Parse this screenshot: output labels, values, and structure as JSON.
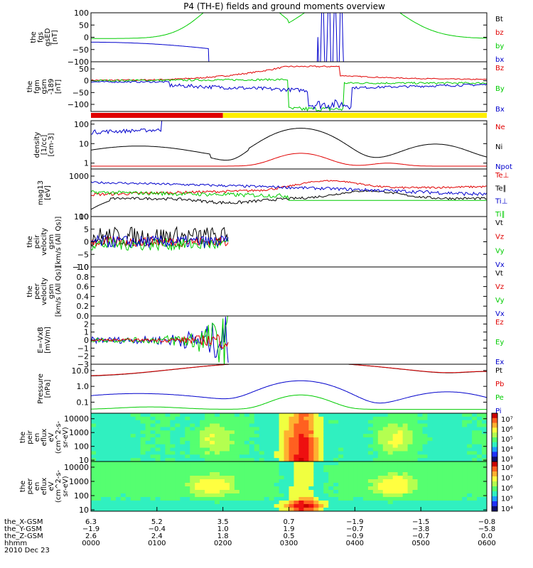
{
  "title": "P4 (TH-E) fields and ground moments overview",
  "colors": {
    "black": "#000000",
    "red": "#e00000",
    "green": "#00cc00",
    "blue": "#0000cc",
    "yellow": "#ffee00"
  },
  "chart_data": [
    {
      "id": "fgs",
      "type": "line",
      "ylabel_lines": [
        "the",
        "fgs",
        "gsED",
        "[nT]"
      ],
      "ylim": [
        -100,
        100
      ],
      "ticks": [
        "100",
        "50",
        "0",
        "−50",
        "−100"
      ],
      "tick_values": [
        100,
        50,
        0,
        -50,
        -100
      ],
      "legend": [
        {
          "label": "Bt",
          "color": "#000000"
        },
        {
          "label": "bz",
          "color": "#e00000"
        },
        {
          "label": "by",
          "color": "#00cc00"
        },
        {
          "label": "bx",
          "color": "#0000cc"
        }
      ]
    },
    {
      "id": "fgm",
      "type": "line",
      "ylabel_lines": [
        "the",
        "fgm",
        "gsm",
        "-189",
        "[nT]"
      ],
      "ylim": [
        -130,
        80
      ],
      "ticks": [
        "50",
        "0",
        "−50",
        "−100"
      ],
      "tick_values": [
        50,
        0,
        -50,
        -100
      ],
      "legend": [
        {
          "label": "Bz",
          "color": "#e00000"
        },
        {
          "label": "By",
          "color": "#00cc00"
        },
        {
          "label": "Bx",
          "color": "#0000cc"
        }
      ]
    },
    {
      "id": "density",
      "type": "line",
      "scale": "log",
      "ylabel_lines": [
        "density",
        "[1/cc]",
        "[cm-3]"
      ],
      "ylim": [
        0.5,
        150
      ],
      "ticks": [
        "100",
        "10",
        "1"
      ],
      "tick_values": [
        100,
        10,
        1
      ],
      "legend": [
        {
          "label": "Ne",
          "color": "#e00000"
        },
        {
          "label": "Ni",
          "color": "#000000"
        },
        {
          "label": "Npot",
          "color": "#0000cc"
        }
      ]
    },
    {
      "id": "temp",
      "type": "line",
      "scale": "log",
      "ylabel_lines": [
        "mag13",
        "[eV]"
      ],
      "ylim": [
        100,
        1500
      ],
      "ticks": [
        "1000",
        "100"
      ],
      "tick_values": [
        1000,
        100
      ],
      "legend": [
        {
          "label": "Te⊥",
          "color": "#e00000"
        },
        {
          "label": "Te∥",
          "color": "#000000"
        },
        {
          "label": "Ti⊥",
          "color": "#0000cc"
        },
        {
          "label": "Ti∥",
          "color": "#00cc00"
        }
      ]
    },
    {
      "id": "peir_v",
      "type": "line",
      "ylabel_lines": [
        "the",
        "peir",
        "velocity",
        "gsm",
        "[km/s (All Qs)]"
      ],
      "ylim": [
        -10,
        10
      ],
      "ticks": [
        "10",
        "5",
        "0",
        "−5",
        "−10"
      ],
      "tick_values": [
        10,
        5,
        0,
        -5,
        -10
      ],
      "legend": [
        {
          "label": "Vt",
          "color": "#000000"
        },
        {
          "label": "Vz",
          "color": "#e00000"
        },
        {
          "label": "Vy",
          "color": "#00cc00"
        },
        {
          "label": "Vx",
          "color": "#0000cc"
        }
      ]
    },
    {
      "id": "peer_v",
      "type": "line",
      "ylabel_lines": [
        "the",
        "peer",
        "velocity",
        "gsm",
        "[km/s (All Qs)]"
      ],
      "ylim": [
        0,
        1
      ],
      "ticks": [
        "1.0",
        "0.8",
        "0.6",
        "0.4",
        "0.2",
        "0.0"
      ],
      "tick_values": [
        1,
        0.8,
        0.6,
        0.4,
        0.2,
        0
      ],
      "legend": [
        {
          "label": "Vt",
          "color": "#000000"
        },
        {
          "label": "Vz",
          "color": "#e00000"
        },
        {
          "label": "Vy",
          "color": "#00cc00"
        },
        {
          "label": "Vx",
          "color": "#0000cc"
        }
      ]
    },
    {
      "id": "efield",
      "type": "line",
      "ylabel_lines": [
        "E=-VxB",
        "[mV/m]"
      ],
      "ylim": [
        -3,
        3
      ],
      "ticks": [
        "2",
        "1",
        "0",
        "−1",
        "−2",
        "−3"
      ],
      "tick_values": [
        2,
        1,
        0,
        -1,
        -2,
        -3
      ],
      "legend": [
        {
          "label": "Ez",
          "color": "#e00000"
        },
        {
          "label": "Ey",
          "color": "#00cc00"
        },
        {
          "label": "Ex",
          "color": "#0000cc"
        }
      ]
    },
    {
      "id": "pressure",
      "type": "line",
      "scale": "log",
      "ylabel_lines": [
        "Pressure",
        "[nPa]"
      ],
      "ylim": [
        0.02,
        25
      ],
      "ticks": [
        "10.0",
        "1.0",
        "0.1"
      ],
      "tick_values": [
        10,
        1,
        0.1
      ],
      "legend": [
        {
          "label": "Pt",
          "color": "#000000"
        },
        {
          "label": "Pb",
          "color": "#e00000"
        },
        {
          "label": "Pe",
          "color": "#00cc00"
        },
        {
          "label": "Pi",
          "color": "#0000cc"
        }
      ]
    },
    {
      "id": "peir_flux",
      "type": "heatmap",
      "scale": "log",
      "ylabel_lines": [
        "the",
        "peir",
        "en",
        "eflux",
        "eV",
        "(cm^2-s-",
        "sr-eV)"
      ],
      "ylim": [
        8,
        25000
      ],
      "ticks": [
        "10000",
        "1000",
        "100",
        "10"
      ],
      "tick_values": [
        10000,
        1000,
        100,
        10
      ],
      "colorbar": {
        "labels": [
          "10⁷",
          "10⁶",
          "10⁵",
          "10⁴",
          "10³"
        ],
        "range": [
          3,
          7
        ]
      }
    },
    {
      "id": "peer_flux",
      "type": "heatmap",
      "scale": "log",
      "ylabel_lines": [
        "the",
        "peer",
        "en",
        "eflux",
        "eV",
        "(cm^2-s-",
        "sr-eV)"
      ],
      "ylim": [
        8,
        25000
      ],
      "ticks": [
        "10000",
        "1000",
        "100",
        "10"
      ],
      "tick_values": [
        10000,
        1000,
        100,
        10
      ],
      "colorbar": {
        "labels": [
          "10⁸",
          "10⁷",
          "10⁶",
          "10⁵",
          "10⁴"
        ],
        "range": [
          4,
          8
        ]
      }
    }
  ],
  "x_axis": {
    "row_labels": [
      "the_X-GSM",
      "the_Y-GSM",
      "the_Z-GSM",
      "hhmm",
      "2010 Dec 23"
    ],
    "ticks": [
      {
        "hhmm": "0000",
        "x": "6.3",
        "y": "−1.9",
        "z": "2.6"
      },
      {
        "hhmm": "0100",
        "x": "5.2",
        "y": "−0.4",
        "z": "2.4"
      },
      {
        "hhmm": "0200",
        "x": "3.5",
        "y": "1.0",
        "z": "1.8"
      },
      {
        "hhmm": "0300",
        "x": "0.7",
        "y": "1.9",
        "z": "0.5"
      },
      {
        "hhmm": "0400",
        "x": "−1.9",
        "y": "−0.7",
        "z": "−0.9"
      },
      {
        "hhmm": "0500",
        "x": "−1.5",
        "y": "−3.8",
        "z": "−0.7"
      },
      {
        "hhmm": "0600",
        "x": "−0.8",
        "y": "−5.8",
        "z": "0.0"
      }
    ]
  },
  "mode_bar": {
    "segments": [
      {
        "from": "0000",
        "to": "0200",
        "color": "#e00000"
      },
      {
        "from": "0200",
        "to": "0600",
        "color": "#ffee00"
      }
    ]
  }
}
